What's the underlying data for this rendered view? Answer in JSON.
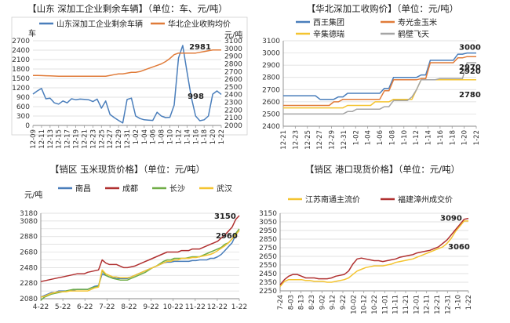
{
  "chart_data": [
    {
      "type": "line",
      "title": "【山东 深加工企业剩余车辆】（单位：车、元/吨）",
      "y_unit_left": "车",
      "y_unit_right": "元/吨",
      "ylim_left": [
        0,
        2700
      ],
      "ylim_right": [
        2000,
        3100
      ],
      "y_ticks_left": [
        0,
        300,
        600,
        900,
        1200,
        1500,
        1800,
        2100,
        2400,
        2700
      ],
      "y_ticks_right": [
        2000,
        2100,
        2200,
        2300,
        2400,
        2500,
        2600,
        2700,
        2800,
        2900,
        3000,
        3100
      ],
      "x_ticks": [
        "12-09",
        "12-11",
        "12-13",
        "12-15",
        "12-17",
        "12-19",
        "12-21",
        "12-23",
        "12-25",
        "12-27",
        "12-29",
        "12-31",
        "1-02",
        "1-04",
        "1-06",
        "1-08",
        "1-10",
        "1-12",
        "1-14",
        "1-16",
        "1-18",
        "1-20",
        "1-22"
      ],
      "legend_position": "top",
      "series": [
        {
          "name": "山东深加工企业剩余车辆",
          "axis": "left",
          "color": "#4a7ebb",
          "values": [
            1000,
            1100,
            1180,
            850,
            870,
            720,
            680,
            780,
            720,
            850,
            820,
            840,
            830,
            820,
            760,
            840,
            550,
            780,
            350,
            250,
            160,
            80,
            830,
            870,
            300,
            220,
            180,
            170,
            160,
            420,
            300,
            250,
            260,
            650,
            2150,
            2550,
            1700,
            900,
            300,
            150,
            180,
            300,
            998,
            1100,
            990
          ]
        },
        {
          "name": "华北企业收购均价",
          "axis": "right",
          "color": "#e07b39",
          "values": [
            2650,
            2650,
            2648,
            2646,
            2644,
            2642,
            2640,
            2640,
            2640,
            2640,
            2640,
            2640,
            2640,
            2640,
            2640,
            2640,
            2640,
            2640,
            2650,
            2660,
            2670,
            2670,
            2680,
            2690,
            2690,
            2700,
            2720,
            2740,
            2760,
            2780,
            2800,
            2830,
            2870,
            2920,
            2940,
            2940,
            2940,
            2940,
            2940,
            2950,
            2960,
            2970,
            2980,
            2981,
            2981
          ]
        }
      ],
      "annotations": [
        {
          "text": "2981",
          "series": 1,
          "index": 42
        },
        {
          "text": "998",
          "series": 0,
          "index": 42
        }
      ]
    },
    {
      "type": "line",
      "title": "【华北深加工收购价】（单位：元/吨）",
      "ylim": [
        2400,
        3100
      ],
      "y_ticks": [
        2400,
        2500,
        2600,
        2700,
        2800,
        2900,
        3000,
        3100
      ],
      "x_ticks": [
        "12-21",
        "12-23",
        "12-25",
        "12-27",
        "12-29",
        "12-31",
        "1-02",
        "1-04",
        "1-06",
        "1-08",
        "1-10",
        "1-12",
        "1-14",
        "1-16",
        "1-18",
        "1-20",
        "1-22"
      ],
      "legend_position": "top",
      "series": [
        {
          "name": "西王集团",
          "color": "#4a7ebb",
          "values": [
            2650,
            2650,
            2650,
            2650,
            2650,
            2650,
            2650,
            2650,
            2620,
            2620,
            2620,
            2620,
            2640,
            2640,
            2670,
            2670,
            2670,
            2670,
            2670,
            2670,
            2670,
            2670,
            2710,
            2710,
            2800,
            2800,
            2800,
            2800,
            2800,
            2800,
            2820,
            2820,
            2940,
            2940,
            2940,
            2940,
            2940,
            2940,
            2990,
            2990,
            3000,
            3000,
            3000
          ]
        },
        {
          "name": "寿光金玉米",
          "color": "#e07b39",
          "values": [
            2570,
            2570,
            2570,
            2570,
            2570,
            2570,
            2570,
            2570,
            2570,
            2570,
            2570,
            2600,
            2600,
            2620,
            2620,
            2620,
            2620,
            2620,
            2620,
            2620,
            2620,
            2620,
            2690,
            2690,
            2780,
            2780,
            2780,
            2780,
            2780,
            2780,
            2790,
            2790,
            2920,
            2920,
            2920,
            2920,
            2920,
            2920,
            2960,
            2960,
            2970,
            2970,
            2970
          ]
        },
        {
          "name": "辛集德瑞",
          "color": "#f4c430",
          "values": [
            2550,
            2550,
            2550,
            2550,
            2550,
            2550,
            2550,
            2550,
            2550,
            2550,
            2550,
            2550,
            2550,
            2550,
            2570,
            2570,
            2570,
            2570,
            2570,
            2570,
            2600,
            2600,
            2600,
            2600,
            2620,
            2620,
            2620,
            2620,
            2620,
            2700,
            2780,
            2780,
            2780,
            2780,
            2780,
            2780,
            2780,
            2780,
            2780,
            2780,
            2780,
            2780,
            2780
          ]
        },
        {
          "name": "鹤壁飞天",
          "color": "#a5a5a5",
          "values": [
            2500,
            2500,
            2500,
            2500,
            2500,
            2500,
            2500,
            2500,
            2500,
            2500,
            2500,
            2500,
            2500,
            2500,
            2520,
            2520,
            2540,
            2540,
            2540,
            2540,
            2540,
            2540,
            2560,
            2560,
            2610,
            2610,
            2610,
            2610,
            2640,
            2700,
            2780,
            2780,
            2780,
            2780,
            2790,
            2790,
            2790,
            2790,
            2790,
            2790,
            2920,
            2920,
            2920
          ]
        }
      ],
      "annotations": [
        {
          "text": "3000",
          "series": 0,
          "index": 42
        },
        {
          "text": "2970",
          "series": 1,
          "index": 42
        },
        {
          "text": "2920",
          "series": 3,
          "index": 42
        },
        {
          "text": "2780",
          "series": 2,
          "index": 42
        }
      ]
    },
    {
      "type": "line",
      "title": "【销区 玉米现货价格】（单位：元/吨）",
      "y_unit": "元/吨",
      "ylim": [
        2080,
        3180
      ],
      "y_ticks": [
        2080,
        2180,
        2280,
        2380,
        2480,
        2580,
        2680,
        2780,
        2880,
        2980,
        3080,
        3180
      ],
      "y_tick_labels": [
        "2080",
        "",
        "2280",
        "",
        "2480",
        "",
        "2680",
        "",
        "2880",
        "",
        "3080",
        "3180"
      ],
      "x_ticks": [
        "4-22",
        "5-22",
        "6-22",
        "7-22",
        "8-22",
        "9-22",
        "10-22",
        "11-22",
        "12-22",
        "1-22"
      ],
      "legend_position": "top",
      "series": [
        {
          "name": "南昌",
          "color": "#4a7ebb",
          "values": [
            2100,
            2120,
            2140,
            2160,
            2160,
            2180,
            2180,
            2180,
            2190,
            2190,
            2200,
            2200,
            2200,
            2200,
            2220,
            2240,
            2250,
            2400,
            2380,
            2360,
            2350,
            2340,
            2340,
            2340,
            2340,
            2360,
            2380,
            2400,
            2420,
            2440,
            2460,
            2480,
            2500,
            2520,
            2540,
            2550,
            2550,
            2560,
            2560,
            2560,
            2560,
            2560,
            2570,
            2570,
            2580,
            2580,
            2580,
            2600,
            2600,
            2620,
            2650,
            2700,
            2750,
            2800,
            2900,
            2960
          ]
        },
        {
          "name": "成都",
          "color": "#b03030",
          "values": [
            2300,
            2310,
            2320,
            2330,
            2340,
            2350,
            2360,
            2370,
            2380,
            2390,
            2400,
            2400,
            2400,
            2420,
            2430,
            2440,
            2450,
            2580,
            2540,
            2520,
            2520,
            2520,
            2500,
            2480,
            2480,
            2490,
            2500,
            2520,
            2540,
            2560,
            2580,
            2600,
            2620,
            2640,
            2660,
            2680,
            2680,
            2680,
            2680,
            2700,
            2700,
            2700,
            2720,
            2720,
            2720,
            2740,
            2760,
            2780,
            2800,
            2820,
            2860,
            2900,
            2950,
            3000,
            3100,
            3150
          ]
        },
        {
          "name": "长沙",
          "color": "#70ad47",
          "values": [
            2060,
            2100,
            2120,
            2140,
            2150,
            2160,
            2170,
            2180,
            2190,
            2200,
            2200,
            2200,
            2200,
            2200,
            2220,
            2230,
            2240,
            2440,
            2380,
            2360,
            2340,
            2330,
            2320,
            2320,
            2320,
            2340,
            2360,
            2380,
            2400,
            2420,
            2450,
            2480,
            2500,
            2530,
            2560,
            2580,
            2580,
            2600,
            2600,
            2600,
            2600,
            2610,
            2620,
            2620,
            2620,
            2640,
            2660,
            2680,
            2700,
            2720,
            2740,
            2780,
            2800,
            2850,
            2920,
            2980
          ]
        },
        {
          "name": "武汉",
          "color": "#f4c430",
          "values": [
            2100,
            2110,
            2130,
            2150,
            2160,
            2170,
            2170,
            2170,
            2180,
            2180,
            2180,
            2180,
            2180,
            2180,
            2200,
            2220,
            2230,
            2450,
            2400,
            2380,
            2360,
            2360,
            2350,
            2350,
            2350,
            2360,
            2380,
            2400,
            2420,
            2440,
            2460,
            2480,
            2500,
            2520,
            2540,
            2560,
            2560,
            2580,
            2580,
            2600,
            2600,
            2600,
            2610,
            2610,
            2620,
            2630,
            2640,
            2650,
            2670,
            2700,
            2730,
            2760,
            2800,
            2850,
            2900,
            2960
          ]
        }
      ],
      "annotations": [
        {
          "text": "3150",
          "series": 1,
          "index": 55
        },
        {
          "text": "2960",
          "series": 0,
          "index": 55
        }
      ]
    },
    {
      "type": "line",
      "title": "【销区 港口现货价格】（单位：元/吨）",
      "ylim": [
        2250,
        3150
      ],
      "y_ticks": [
        2250,
        2350,
        2450,
        2550,
        2650,
        2750,
        2850,
        2950,
        3050,
        3150
      ],
      "x_ticks": [
        "7-24",
        "8-03",
        "8-13",
        "8-23",
        "9-02",
        "9-12",
        "9-22",
        "10-02",
        "10-12",
        "10-22",
        "11-01",
        "11-11",
        "11-21",
        "12-01",
        "12-11",
        "12-21",
        "12-31",
        "1-10",
        "1-22"
      ],
      "legend_position": "top",
      "series": [
        {
          "name": "江苏南通主流价",
          "color": "#f4c430",
          "values": [
            2300,
            2360,
            2380,
            2380,
            2380,
            2380,
            2370,
            2370,
            2360,
            2360,
            2360,
            2350,
            2350,
            2360,
            2370,
            2380,
            2400,
            2440,
            2480,
            2500,
            2520,
            2530,
            2540,
            2540,
            2540,
            2550,
            2560,
            2580,
            2590,
            2600,
            2610,
            2620,
            2640,
            2660,
            2680,
            2700,
            2720,
            2740,
            2760,
            2800,
            2860,
            2940,
            3000,
            3060,
            3060
          ]
        },
        {
          "name": "福建漳州成交价",
          "color": "#b03030",
          "values": [
            2320,
            2380,
            2420,
            2440,
            2440,
            2420,
            2400,
            2400,
            2400,
            2390,
            2390,
            2390,
            2400,
            2420,
            2430,
            2440,
            2480,
            2560,
            2620,
            2630,
            2620,
            2610,
            2600,
            2600,
            2590,
            2600,
            2610,
            2620,
            2640,
            2650,
            2660,
            2670,
            2690,
            2700,
            2710,
            2720,
            2740,
            2760,
            2800,
            2840,
            2900,
            2960,
            3020,
            3080,
            3090
          ]
        }
      ],
      "annotations": [
        {
          "text": "3090",
          "series": 1,
          "index": 44
        },
        {
          "text": "3060",
          "series": 0,
          "index": 44
        }
      ]
    }
  ]
}
